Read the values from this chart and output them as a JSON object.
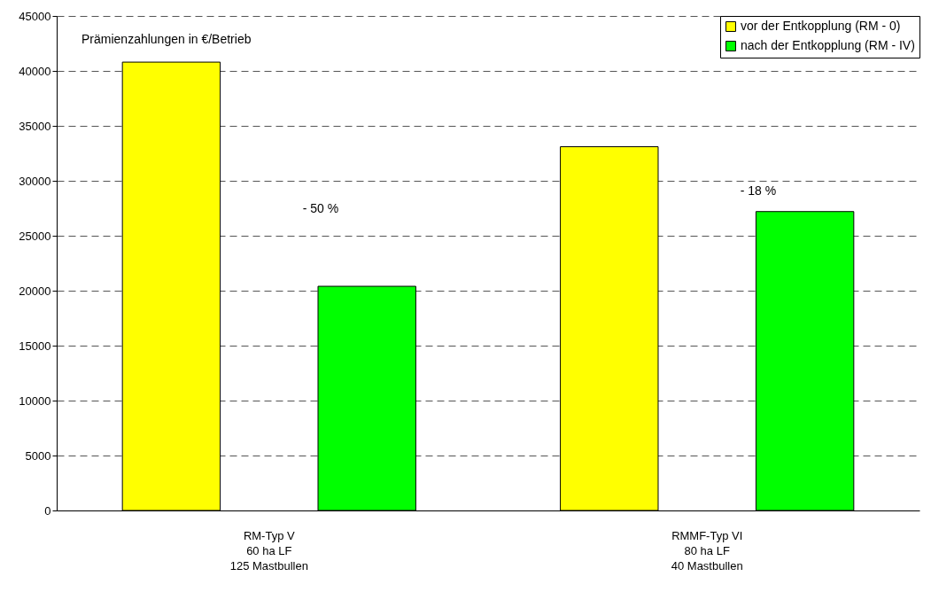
{
  "chart_data": {
    "type": "bar",
    "categories": [
      "RM-Typ V\n60 ha LF\n125 Mastbullen",
      "RMMF-Typ VI\n80 ha LF\n40 Mastbullen"
    ],
    "series": [
      {
        "name": "vor der Entkopplung (RM - 0)",
        "color": "#ffff00",
        "values": [
          40800,
          33100
        ]
      },
      {
        "name": "nach der Entkopplung (RM - IV)",
        "color": "#00ff00",
        "values": [
          20400,
          27200
        ]
      }
    ],
    "annotations": [
      "Prämienzahlungen in €/Betrieb",
      "- 50 %",
      "- 18 %"
    ],
    "ylim": [
      0,
      45000
    ],
    "yticks": [
      0,
      5000,
      10000,
      15000,
      20000,
      25000,
      30000,
      35000,
      40000,
      45000
    ],
    "grid": "y",
    "legend": "top right"
  }
}
